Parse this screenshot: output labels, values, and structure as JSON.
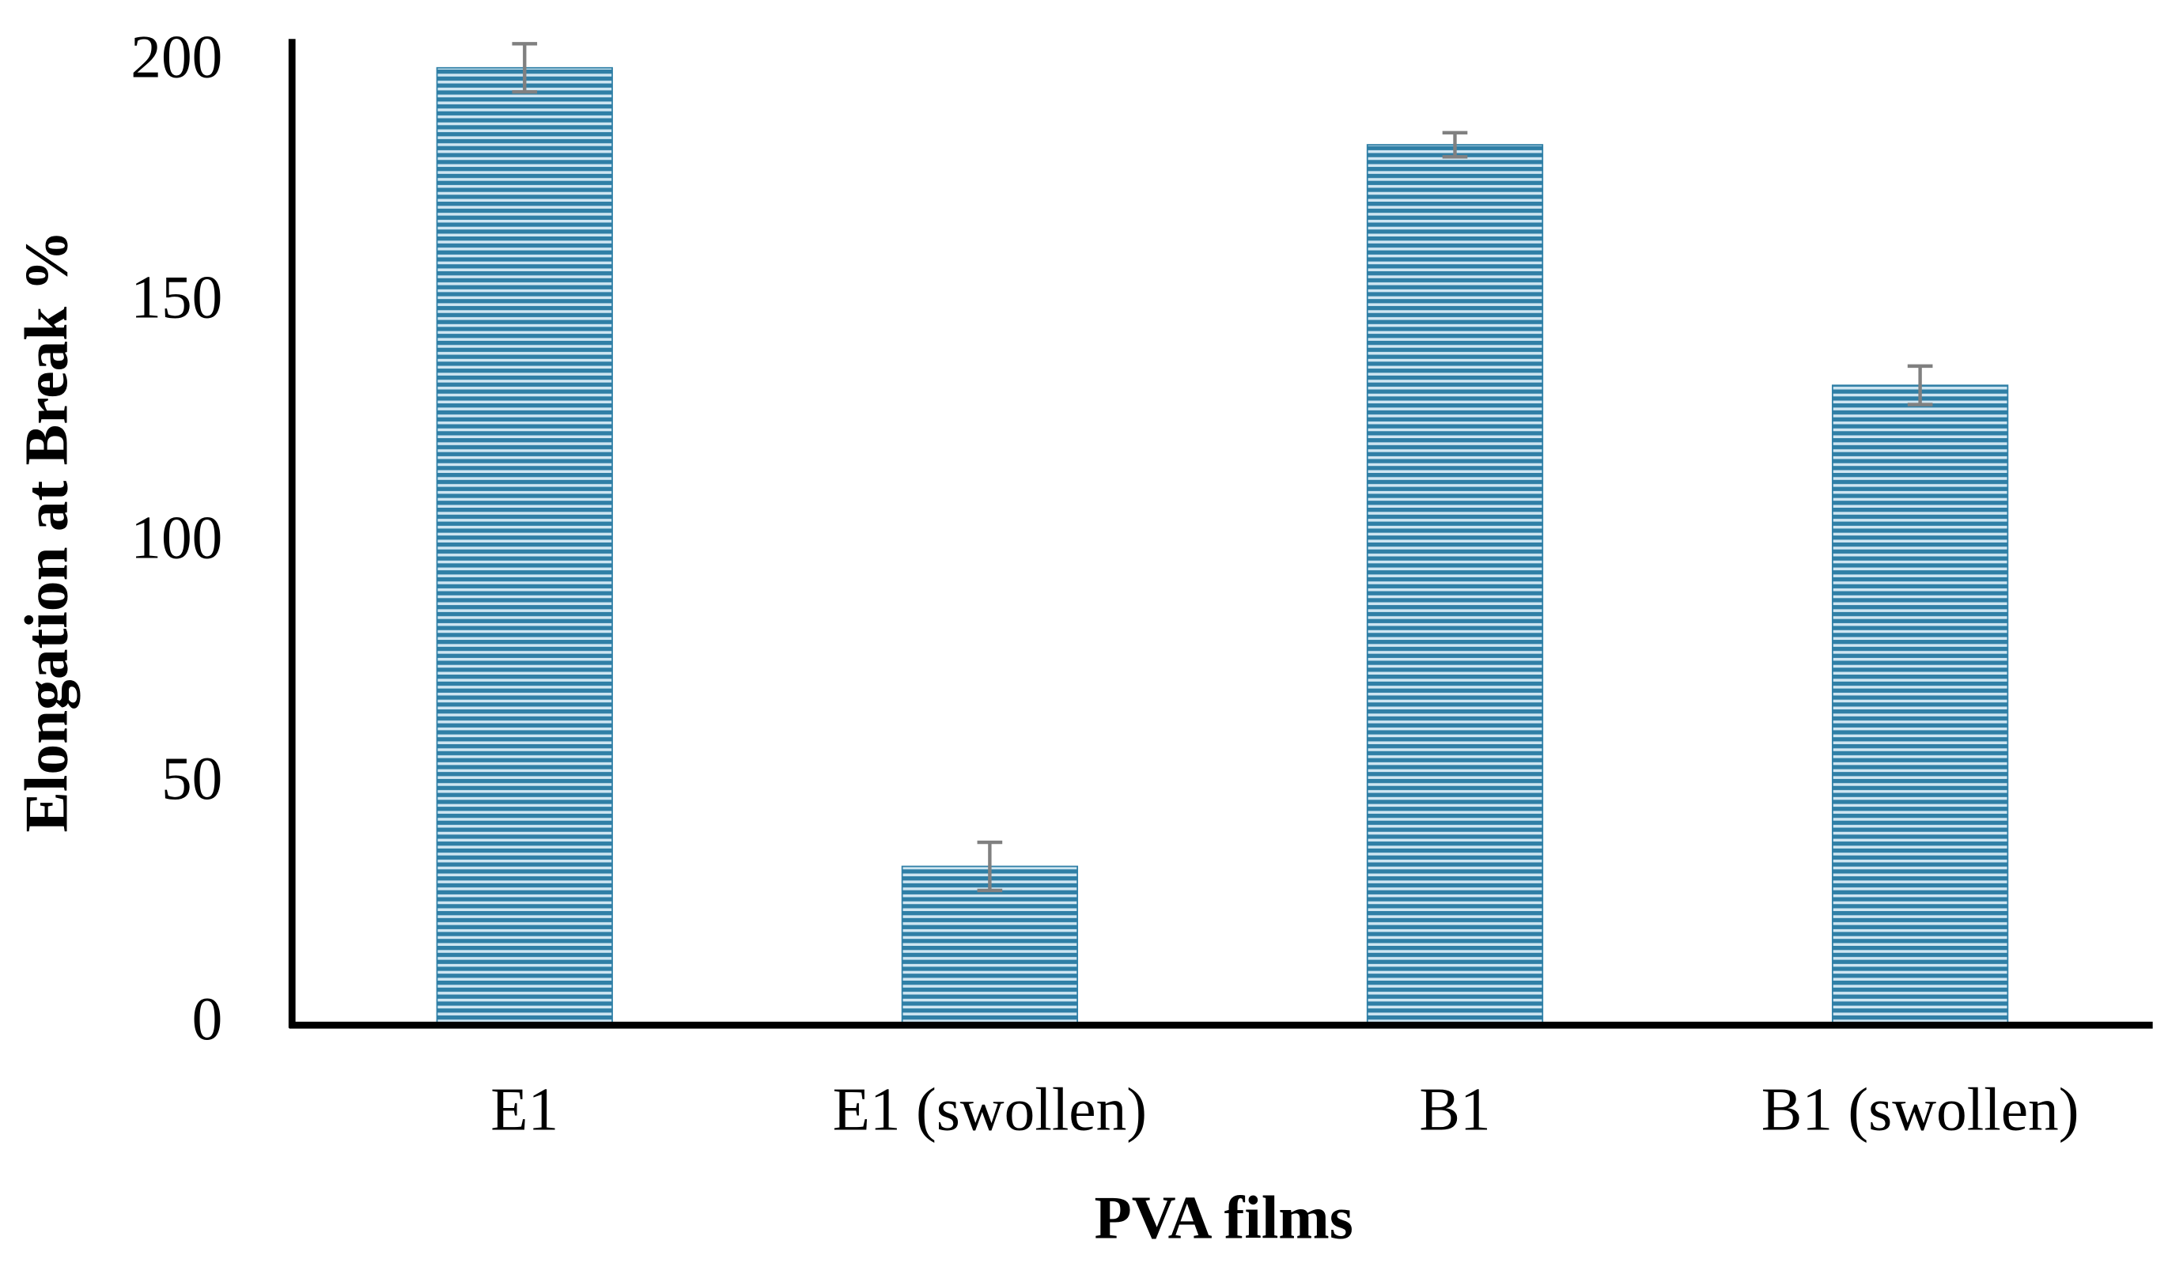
{
  "chart_data": {
    "type": "bar",
    "x_label": "PVA films",
    "y_label": "Elongation at Break %",
    "categories": [
      "E1",
      "E1 (swollen)",
      "B1",
      "B1 (swollen)"
    ],
    "values": [
      199,
      33,
      183,
      133
    ],
    "errors": [
      5,
      5,
      2.5,
      4
    ],
    "color": "#2f7fa6",
    "error_color": "#808080",
    "ylim": [
      0,
      205
    ],
    "yticks": [
      0,
      50,
      100,
      150,
      200
    ],
    "grid": false
  }
}
